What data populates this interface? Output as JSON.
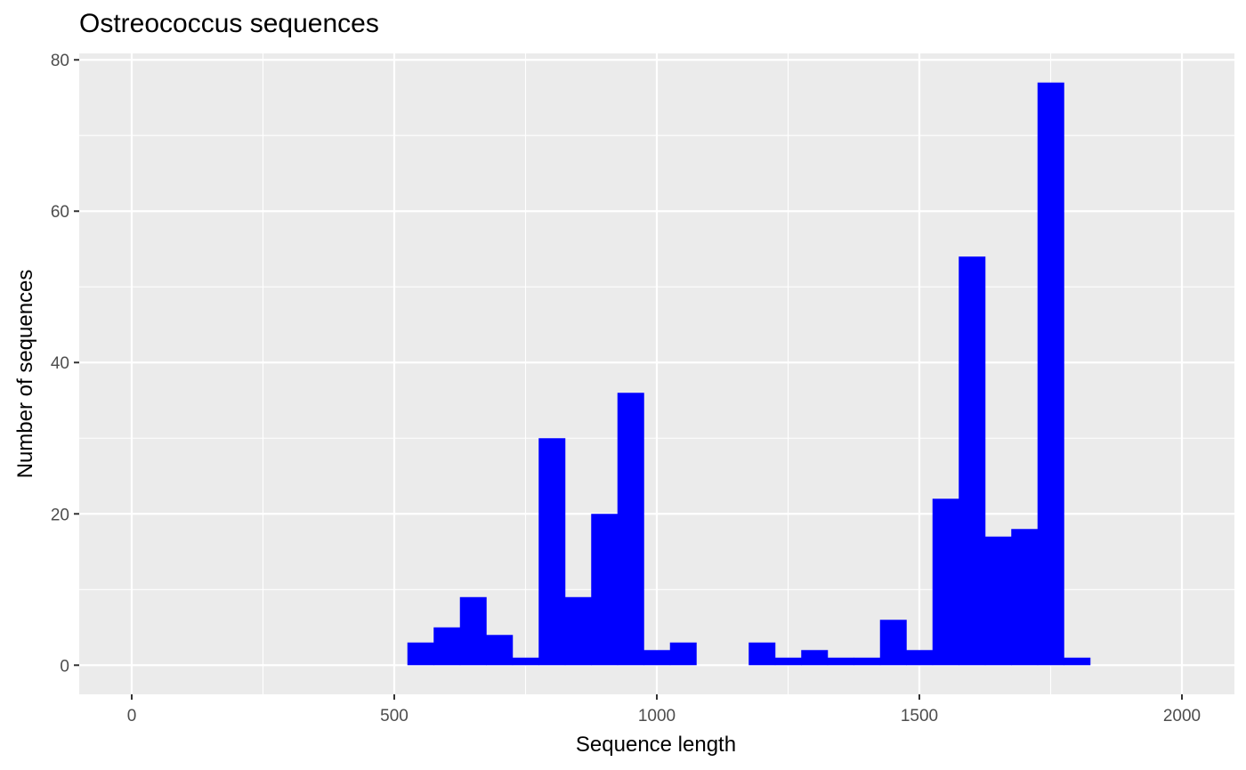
{
  "chart_data": {
    "type": "bar",
    "title": "Ostreococcus sequences",
    "xlabel": "Sequence length",
    "ylabel": "Number of sequences",
    "xlim": [
      -100,
      2100
    ],
    "ylim": [
      -3.85,
      80.85
    ],
    "x_ticks": [
      0,
      500,
      1000,
      1500,
      2000
    ],
    "y_ticks": [
      0,
      20,
      40,
      60,
      80
    ],
    "bin_width": 50,
    "bin_starts": [
      525,
      575,
      625,
      675,
      725,
      775,
      825,
      875,
      925,
      975,
      1025,
      1075,
      1125,
      1175,
      1225,
      1275,
      1325,
      1375,
      1425,
      1475,
      1525,
      1575,
      1625,
      1675,
      1725,
      1775
    ],
    "values": [
      3,
      5,
      9,
      4,
      1,
      30,
      9,
      20,
      36,
      2,
      3,
      0,
      0,
      3,
      1,
      2,
      1,
      1,
      6,
      2,
      22,
      54,
      17,
      18,
      77,
      1
    ],
    "bar_color": "#0000ff",
    "panel_color": "#ebebeb",
    "grid": true,
    "legend": "none"
  }
}
